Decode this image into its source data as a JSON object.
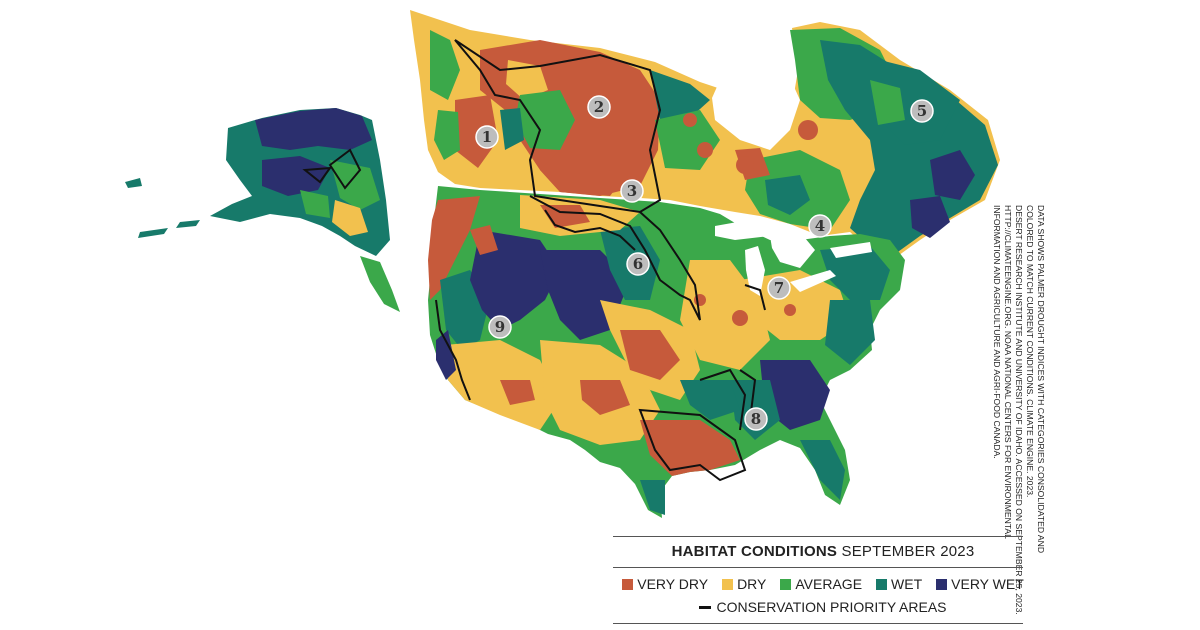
{
  "legend": {
    "title_bold": "HABITAT CONDITIONS",
    "title_rest": "SEPTEMBER 2023",
    "categories": [
      {
        "label": "VERY DRY",
        "color": "#c65a3b"
      },
      {
        "label": "DRY",
        "color": "#f2c14e"
      },
      {
        "label": "AVERAGE",
        "color": "#3ba84a"
      },
      {
        "label": "WET",
        "color": "#177a6a"
      },
      {
        "label": "VERY WET",
        "color": "#2b2f6e"
      }
    ],
    "priority_label": "CONSERVATION PRIORITY AREAS"
  },
  "source_note": [
    "DATA SHOWS PALMER DROUGHT INDICES WITH CATEGORIES CONSOLIDATED AND",
    "COLORED TO MATCH CURRENT CONDITIONS. CLIMATE ENGINE. 2023.",
    "DESERT RESEARCH INSTITUTE AND UNIVERSITY OF IDAHO. ACCESSED ON SEPTEMBER 25, 2023.",
    "HTTP://CLIMATEENGINE.ORG. NOAA NATIONAL CENTERS FOR ENVIRONMENTAL",
    "INFORMATION AND AGRICULTURE AND AGRI-FOOD CANADA."
  ],
  "markers": [
    "1",
    "2",
    "3",
    "4",
    "5",
    "6",
    "7",
    "8",
    "9"
  ],
  "colors": {
    "very_dry": "#c65a3b",
    "dry": "#f2c14e",
    "average": "#3ba84a",
    "wet": "#177a6a",
    "very_wet": "#2b2f6e",
    "water": "#ffffff",
    "marker_fill": "#bdbdbd"
  }
}
